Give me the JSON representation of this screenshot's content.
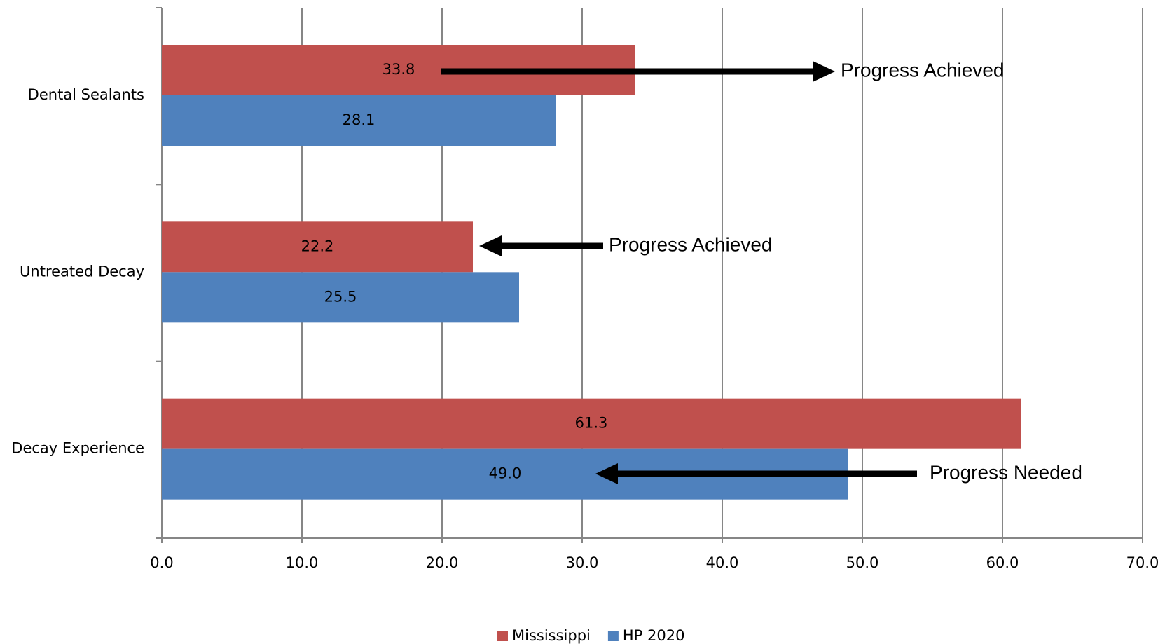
{
  "chart_data": {
    "type": "bar",
    "orientation": "horizontal",
    "categories": [
      "Dental Sealants",
      "Untreated Decay",
      "Decay Experience"
    ],
    "series": [
      {
        "name": "Mississippi",
        "color": "#c0504d",
        "values": [
          33.8,
          22.2,
          61.3
        ],
        "value_labels": [
          "33.8",
          "22.2",
          "61.3"
        ]
      },
      {
        "name": "HP 2020",
        "color": "#4f81bd",
        "values": [
          28.1,
          25.5,
          49.0
        ],
        "value_labels": [
          "28.1",
          "25.5",
          "49.0"
        ]
      }
    ],
    "xlim": [
      0,
      70
    ],
    "xticks": [
      {
        "value": 0,
        "label": "0.0"
      },
      {
        "value": 10,
        "label": "10.0"
      },
      {
        "value": 20,
        "label": "20.0"
      },
      {
        "value": 30,
        "label": "30.0"
      },
      {
        "value": 40,
        "label": "40.0"
      },
      {
        "value": 50,
        "label": "50.0"
      },
      {
        "value": 60,
        "label": "60.0"
      },
      {
        "value": 70,
        "label": "70.0"
      }
    ],
    "grid": true,
    "legend": "bottom",
    "annotations": [
      "Progress Achieved",
      "Progress Achieved",
      "Progress Needed"
    ]
  }
}
